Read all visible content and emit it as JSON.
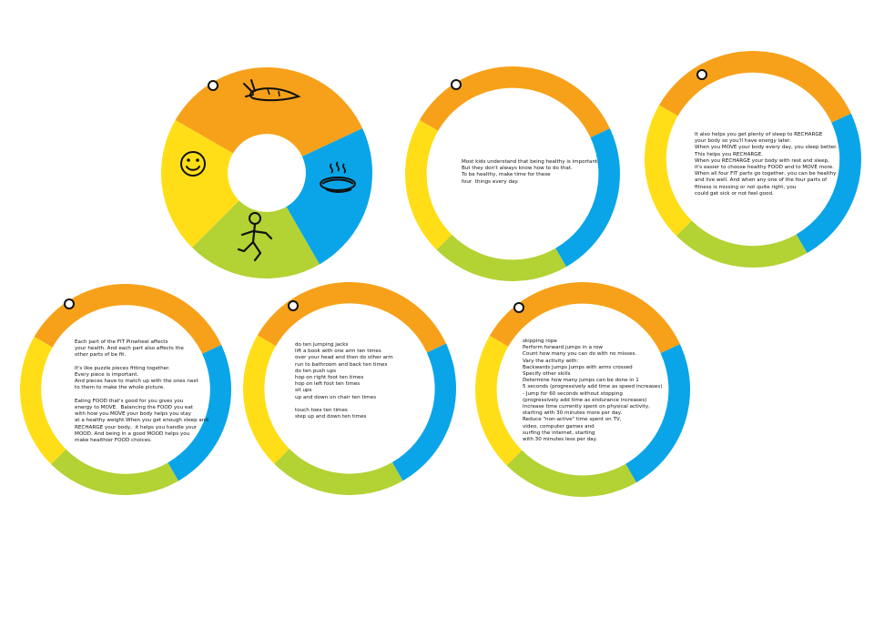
{
  "colors": {
    "orange": "#f7a11a",
    "blue": "#0aa5e8",
    "green": "#b3d234",
    "yellow": "#ffde17",
    "hole_stroke": "#111111"
  },
  "wheels": [
    {
      "id": "cover",
      "icons": [
        "carrot-icon",
        "hot-dish-icon",
        "running-figure-icon",
        "smiley-face-icon"
      ],
      "lines": []
    },
    {
      "id": "page-1",
      "lines": [
        "Most kids understand that being healthy is important.",
        "But they don't always know how to do that.",
        "To be healthy, make time for these",
        "four  things every day."
      ]
    },
    {
      "id": "page-2",
      "lines": [
        "It also helps you get plenty of sleep to RECHARGE",
        "your body so you'll have energy later.",
        "When you MOVE your body every day, you sleep better.",
        "This helps you RECHARGE.",
        "When you RECHARGE your body with rest and sleep,",
        "it's easier to choose healthy FOOD and to MOVE more.",
        "When all four FIT parts go together, you can be healthy",
        "and live well. And when any one of the four parts of",
        "fitness is missing or not quite right, you",
        "could get sick or not feel good."
      ]
    },
    {
      "id": "page-3",
      "lines": [
        "Each part of the FIT Pinwheel affects",
        "your health. And each part also affects the",
        "other parts of be fit.",
        "",
        "It's like puzzle pieces fitting together.",
        "Every piece is important.",
        "And pieces have to match up with the ones next",
        "to them to make the whole picture.",
        "",
        "Eating FOOD that's good for you gives you",
        "energy to MOVE.  Balancing the FOOD you eat",
        "with how you MOVE your body helps you stay",
        "at a healthy weight.When you get enough sleep and",
        "RECHARGE your body,  it helps you handle your",
        "MOOD. And being in a good MOOD helps you",
        "make healthier FOOD choices."
      ]
    },
    {
      "id": "page-4",
      "lines": [
        "do ten jumping jacks",
        "lift a book with one arm ten times",
        "over your head and then do other arm",
        "run to bathroom and back ten times",
        "do ten push ups",
        "hop on right foot ten times",
        "hop on left foot ten times",
        "sit ups",
        "up and down on chair ten times",
        "",
        "touch toes ten times",
        "step up and down ten times"
      ]
    },
    {
      "id": "page-5",
      "lines": [
        "skipping rope",
        "Perform forward jumps in a row",
        "Count how many you can do with no misses.",
        "Vary the activity with:",
        "Backwards jumps Jumps with arms crossed",
        "Specify other skills",
        "Determine how many jumps can be done in 1",
        "5 seconds (progressively add time as speed increases)",
        "- Jump for 60 seconds without stopping",
        "(progressively add time as endurance increases)",
        "Increase time currently spent on physical activity,",
        "starting with 30 minutes more per day.",
        "Reduce \"non-active\" time spent on TV,",
        "video, computer games and",
        "surfing the internet, starting",
        "with 30 minutes less per day."
      ]
    }
  ]
}
